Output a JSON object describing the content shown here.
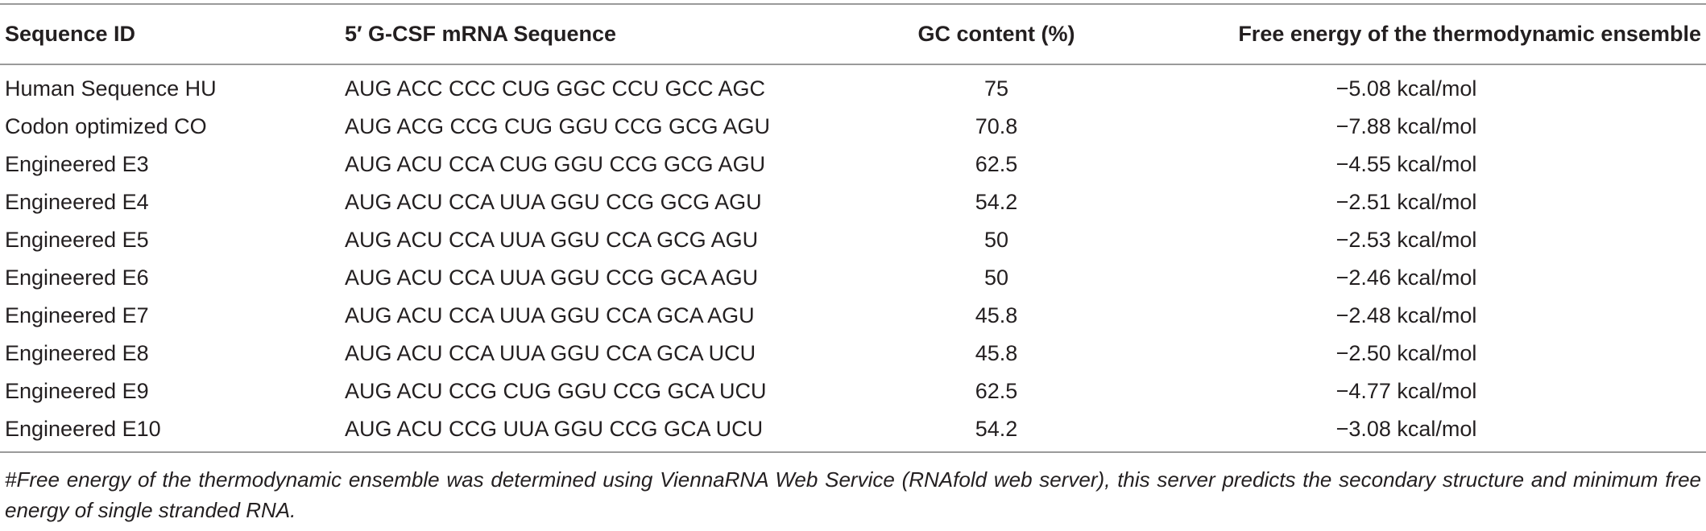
{
  "table": {
    "headers": [
      "Sequence ID",
      "5′ G-CSF mRNA Sequence",
      "GC content (%)",
      "Free energy of the thermodynamic ensemble"
    ],
    "rows": [
      {
        "id": "Human Sequence HU",
        "sequence": "AUG ACC CCC CUG GGC CCU GCC AGC",
        "gc": "75",
        "energy": "−5.08 kcal/mol"
      },
      {
        "id": "Codon optimized CO",
        "sequence": "AUG ACG CCG CUG GGU CCG GCG AGU",
        "gc": "70.8",
        "energy": "−7.88 kcal/mol"
      },
      {
        "id": "Engineered E3",
        "sequence": "AUG ACU CCA CUG GGU CCG GCG AGU",
        "gc": "62.5",
        "energy": "−4.55 kcal/mol"
      },
      {
        "id": "Engineered E4",
        "sequence": "AUG ACU CCA UUA GGU CCG GCG AGU",
        "gc": "54.2",
        "energy": "−2.51 kcal/mol"
      },
      {
        "id": "Engineered E5",
        "sequence": "AUG ACU CCA UUA GGU CCA GCG AGU",
        "gc": "50",
        "energy": "−2.53 kcal/mol"
      },
      {
        "id": "Engineered E6",
        "sequence": "AUG ACU CCA UUA GGU CCG GCA AGU",
        "gc": "50",
        "energy": "−2.46 kcal/mol"
      },
      {
        "id": "Engineered E7",
        "sequence": "AUG ACU CCA UUA GGU CCA GCA AGU",
        "gc": "45.8",
        "energy": "−2.48 kcal/mol"
      },
      {
        "id": "Engineered E8",
        "sequence": "AUG ACU CCA UUA GGU CCA GCA UCU",
        "gc": "45.8",
        "energy": "−2.50 kcal/mol"
      },
      {
        "id": "Engineered E9",
        "sequence": "AUG ACU CCG CUG GGU CCG GCA UCU",
        "gc": "62.5",
        "energy": "−4.77 kcal/mol"
      },
      {
        "id": "Engineered E10",
        "sequence": "AUG ACU CCG UUA GGU CCG GCA UCU",
        "gc": "54.2",
        "energy": "−3.08 kcal/mol"
      }
    ]
  },
  "footnote": "#Free energy of the thermodynamic ensemble was determined using ViennaRNA Web Service (RNAfold web server), this server predicts the secondary structure and minimum free energy of single stranded RNA."
}
